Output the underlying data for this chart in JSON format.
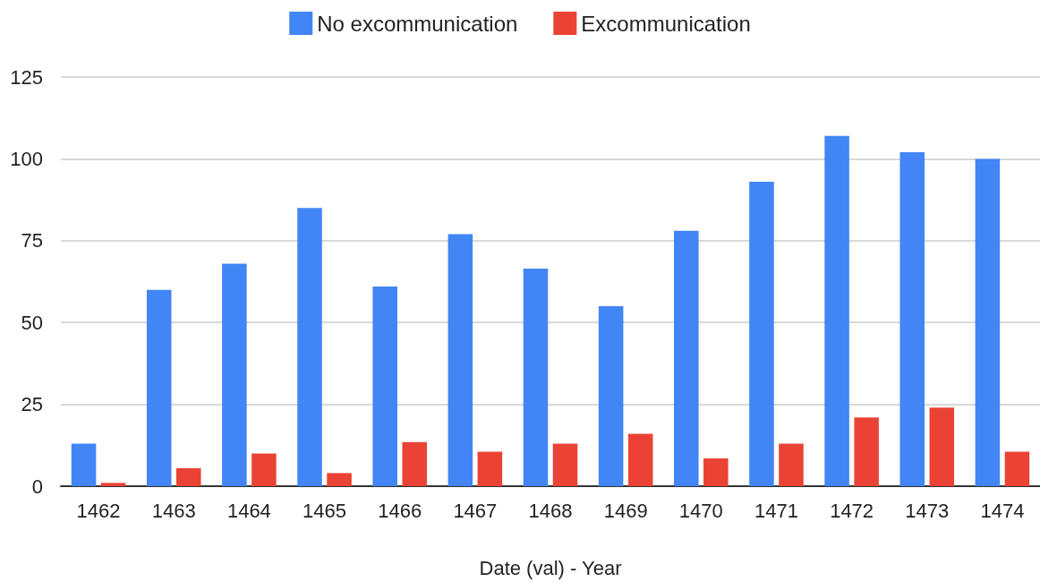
{
  "chart_data": {
    "type": "bar",
    "xlabel": "Date (val) - Year",
    "categories": [
      "1462",
      "1463",
      "1464",
      "1465",
      "1466",
      "1467",
      "1468",
      "1469",
      "1470",
      "1471",
      "1472",
      "1473",
      "1474"
    ],
    "series": [
      {
        "name": "No excommunication",
        "color": "#4285f4",
        "values": [
          13,
          60,
          68,
          85,
          61,
          77,
          66.5,
          55,
          78,
          93,
          107,
          102,
          100
        ]
      },
      {
        "name": "Excommunication",
        "color": "#ea4335",
        "values": [
          1,
          5.5,
          10,
          4,
          13.5,
          10.5,
          13,
          16,
          8.5,
          13,
          21,
          24,
          10.5
        ]
      }
    ],
    "ylim": [
      0,
      125
    ],
    "yticks": [
      0,
      25,
      50,
      75,
      100,
      125
    ],
    "grid": "y",
    "legend": "top"
  }
}
